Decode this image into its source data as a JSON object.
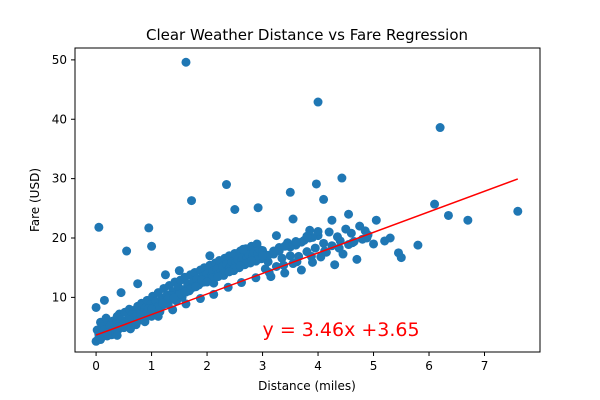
{
  "chart_data": {
    "type": "scatter",
    "title": "Clear Weather Distance vs Fare Regression",
    "xlabel": "Distance (miles)",
    "ylabel": "Fare (USD)",
    "xlim": [
      -0.38,
      8.0
    ],
    "ylim": [
      0.8,
      52.0
    ],
    "xticks": [
      0,
      1,
      2,
      3,
      4,
      5,
      6,
      7
    ],
    "yticks": [
      10,
      20,
      30,
      40,
      50
    ],
    "grid": false,
    "colors": {
      "points": "#1f77b4",
      "regression": "#ff0000",
      "axes": "#000000"
    },
    "regression": {
      "slope": 3.46,
      "intercept": 3.65,
      "x_range": [
        0.0,
        7.6
      ],
      "label": "y = 3.46x +3.65",
      "label_position": {
        "x": 3.0,
        "y": 3.5
      }
    },
    "series": [
      {
        "x": [
          0.0,
          0.0,
          0.02,
          0.05,
          0.08,
          0.1,
          0.12,
          0.15,
          0.18,
          0.2,
          0.22,
          0.25,
          0.28,
          0.3,
          0.32,
          0.35,
          0.38,
          0.4,
          0.42,
          0.45,
          0.48,
          0.5,
          0.52,
          0.55,
          0.58,
          0.6,
          0.62,
          0.65,
          0.68,
          0.7,
          0.72,
          0.75,
          0.78,
          0.8,
          0.82,
          0.85,
          0.88,
          0.9,
          0.92,
          0.95,
          0.98,
          1.0,
          1.02,
          1.05,
          1.08,
          1.1,
          1.12,
          1.15,
          1.18,
          1.2,
          1.22,
          1.25,
          1.28,
          1.3,
          1.32,
          1.35,
          1.38,
          1.4,
          1.42,
          1.45,
          1.48,
          1.5,
          1.52,
          1.55,
          1.58,
          1.6,
          1.62,
          1.65,
          1.68,
          1.7,
          1.72,
          1.75,
          1.78,
          1.8,
          1.82,
          1.85,
          1.88,
          1.9,
          1.92,
          1.95,
          1.98,
          2.0,
          2.02,
          2.05,
          2.08,
          2.1,
          2.12,
          2.15,
          2.18,
          2.2,
          2.22,
          2.25,
          2.28,
          2.3,
          2.32,
          2.35,
          2.38,
          2.4,
          2.42,
          2.45,
          2.48,
          2.5,
          2.52,
          2.55,
          2.58,
          2.6,
          2.62,
          2.65,
          2.68,
          2.7,
          2.72,
          2.75,
          2.78,
          2.8,
          2.82,
          2.85,
          2.88,
          2.9,
          2.92,
          2.95,
          2.98,
          3.0,
          3.05,
          3.1,
          3.15,
          3.2,
          3.25,
          3.3,
          3.35,
          3.4,
          3.45,
          3.5,
          3.55,
          3.6,
          3.65,
          3.7,
          3.75,
          3.8,
          3.85,
          3.9,
          3.95,
          4.0,
          4.05,
          4.1,
          4.15,
          4.2,
          4.25,
          4.3,
          4.35,
          4.4,
          4.45,
          4.5,
          4.55,
          4.6,
          4.65,
          4.7,
          4.75,
          4.8,
          4.85,
          4.9,
          0.05,
          0.15,
          0.25,
          0.35,
          0.45,
          0.55,
          0.65,
          0.75,
          0.85,
          0.95,
          1.05,
          1.15,
          1.25,
          1.35,
          1.45,
          1.55,
          1.65,
          1.75,
          1.85,
          1.95,
          0.1,
          0.3,
          0.5,
          0.7,
          0.9,
          1.1,
          1.3,
          1.5,
          1.7,
          1.9,
          2.1,
          2.3,
          2.5,
          2.7,
          2.9,
          3.1,
          3.3,
          3.5,
          3.7,
          3.9,
          0.2,
          0.4,
          0.6,
          0.8,
          1.0,
          1.2,
          1.4,
          1.6,
          1.8,
          2.0,
          2.2,
          2.4,
          2.6,
          2.8,
          3.0,
          3.2,
          3.4,
          3.6,
          3.8,
          4.0,
          0.08,
          0.38,
          0.62,
          0.88,
          1.12,
          1.38,
          1.62,
          1.88,
          2.12,
          2.38,
          2.62,
          2.88,
          3.12,
          3.38,
          3.62,
          3.88,
          4.12,
          4.38,
          4.62,
          4.88,
          5.0,
          5.05,
          5.2,
          5.3,
          5.45,
          5.5,
          5.8,
          6.1,
          6.2,
          6.35,
          6.7,
          7.6,
          0.05,
          0.55,
          0.95,
          1.62,
          1.72,
          2.35,
          2.92,
          3.5,
          3.55,
          3.97,
          4.0,
          4.1,
          4.43,
          2.5,
          1.0,
          0.15,
          0.45,
          0.75,
          1.25,
          1.5,
          2.05,
          2.65,
          3.25,
          3.85,
          4.25,
          4.55
        ],
        "y": [
          2.6,
          8.3,
          4.5,
          3.2,
          5.8,
          3.9,
          5.1,
          4.2,
          6.5,
          3.5,
          5.3,
          4.8,
          3.7,
          6.0,
          4.3,
          5.5,
          6.8,
          4.6,
          7.2,
          5.0,
          5.6,
          4.9,
          7.5,
          6.1,
          5.2,
          8.0,
          6.4,
          5.7,
          7.8,
          6.3,
          5.4,
          8.5,
          6.9,
          7.3,
          9.0,
          6.6,
          8.2,
          7.0,
          9.5,
          7.7,
          8.8,
          6.8,
          10.2,
          7.9,
          9.3,
          8.4,
          10.8,
          7.6,
          9.9,
          8.7,
          11.5,
          9.1,
          10.4,
          8.9,
          12.0,
          9.7,
          11.0,
          10.1,
          12.6,
          9.4,
          11.8,
          10.6,
          12.9,
          10.0,
          11.3,
          13.4,
          10.9,
          12.3,
          11.1,
          13.8,
          11.6,
          12.7,
          14.2,
          11.9,
          13.1,
          12.2,
          14.6,
          12.5,
          13.5,
          15.0,
          12.8,
          14.0,
          13.2,
          15.4,
          13.6,
          14.4,
          12.4,
          15.8,
          14.8,
          13.9,
          16.2,
          14.3,
          15.2,
          13.7,
          16.6,
          15.6,
          14.7,
          17.0,
          15.1,
          16.0,
          14.5,
          17.4,
          15.9,
          16.4,
          15.0,
          17.8,
          16.3,
          16.8,
          15.5,
          18.2,
          16.7,
          17.2,
          15.8,
          18.6,
          17.1,
          17.6,
          16.1,
          19.0,
          17.5,
          18.0,
          16.5,
          17.9,
          14.8,
          16.0,
          13.5,
          17.3,
          15.2,
          18.4,
          16.6,
          14.1,
          19.2,
          17.0,
          15.7,
          18.8,
          16.9,
          14.6,
          19.6,
          17.7,
          20.0,
          15.9,
          18.3,
          20.4,
          16.8,
          19.1,
          17.6,
          21.0,
          18.7,
          15.5,
          20.2,
          19.5,
          17.3,
          21.5,
          18.9,
          20.8,
          19.4,
          16.4,
          22.0,
          19.8,
          21.2,
          20.5,
          3.8,
          4.6,
          5.2,
          4.1,
          6.2,
          5.9,
          7.1,
          6.0,
          7.4,
          8.1,
          7.2,
          8.6,
          9.2,
          10.3,
          9.6,
          10.7,
          11.2,
          11.7,
          12.1,
          12.6,
          3.3,
          4.4,
          5.6,
          6.7,
          7.3,
          8.3,
          9.8,
          10.5,
          11.4,
          12.9,
          13.3,
          14.1,
          14.9,
          15.7,
          16.3,
          17.1,
          17.8,
          18.5,
          19.3,
          20.1,
          4.0,
          5.0,
          6.2,
          7.1,
          8.0,
          9.0,
          9.9,
          10.9,
          11.8,
          12.6,
          13.5,
          14.3,
          15.3,
          16.1,
          17.0,
          17.8,
          18.6,
          19.4,
          20.3,
          21.1,
          2.9,
          3.6,
          4.7,
          5.9,
          6.8,
          7.9,
          8.9,
          9.8,
          10.5,
          11.7,
          12.5,
          13.3,
          14.2,
          15.4,
          16.0,
          16.9,
          17.8,
          18.3,
          19.2,
          20.0,
          19.0,
          23.0,
          19.5,
          20.0,
          17.5,
          16.7,
          18.8,
          25.7,
          38.6,
          23.8,
          23.0,
          24.5,
          21.8,
          17.8,
          21.7,
          49.6,
          26.3,
          29.0,
          25.1,
          27.7,
          23.2,
          29.1,
          42.9,
          26.5,
          30.1,
          24.8,
          18.6,
          9.5,
          10.8,
          12.3,
          13.8,
          14.5,
          17.0,
          18.1,
          20.4,
          21.3,
          23.0,
          24.0
        ]
      }
    ]
  }
}
